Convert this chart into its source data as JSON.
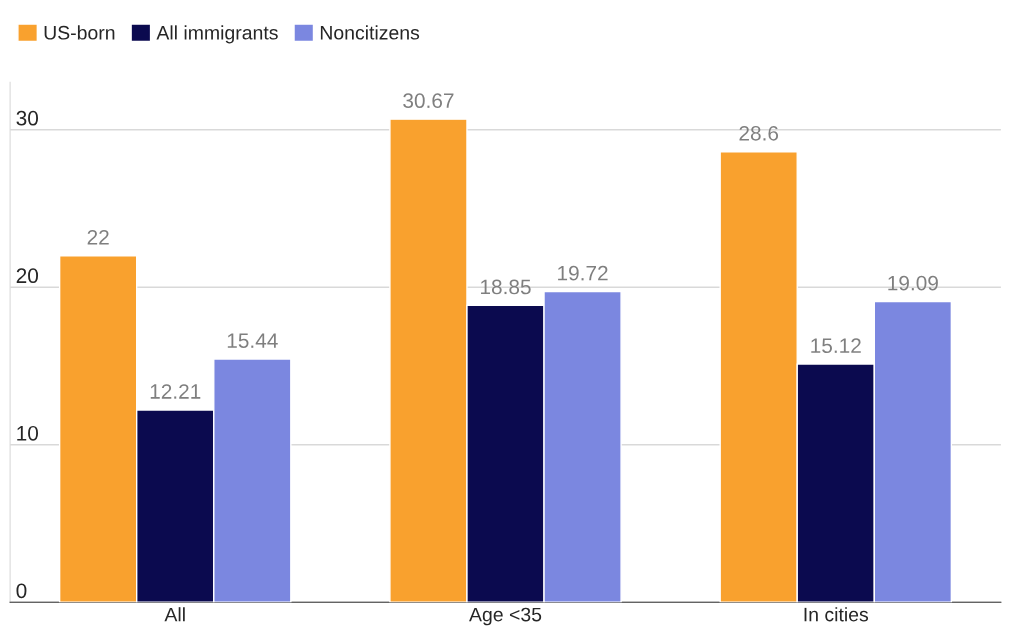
{
  "chart_data": {
    "type": "bar",
    "categories": [
      "All",
      "Age <35",
      "In cities"
    ],
    "series": [
      {
        "name": "US-born",
        "color": "#f9a12e",
        "values": [
          22,
          30.67,
          28.6
        ]
      },
      {
        "name": "All immigrants",
        "color": "#0b0a4f",
        "values": [
          12.21,
          18.85,
          15.12
        ]
      },
      {
        "name": "Noncitizens",
        "color": "#7b87e0",
        "values": [
          15.44,
          19.72,
          19.09
        ]
      }
    ],
    "ylim": [
      0,
      33
    ],
    "yticks": [
      0,
      10,
      20,
      30
    ],
    "grid": "y",
    "legend": "top left",
    "data_labels": true
  }
}
